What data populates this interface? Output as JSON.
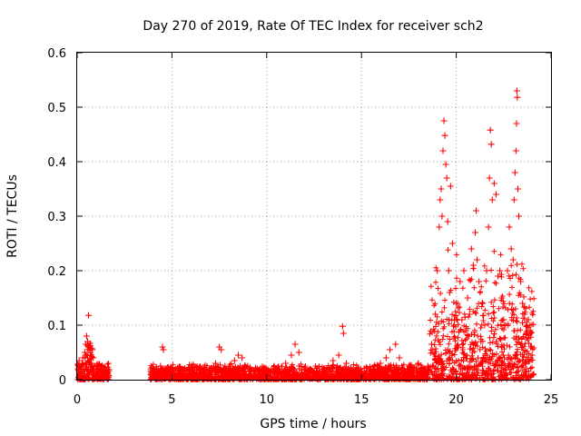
{
  "chart_data": {
    "type": "scatter",
    "title": "Day 270 of 2019, Rate Of TEC Index for receiver sch2",
    "xlabel": "GPS time / hours",
    "ylabel": "ROTI / TECUs",
    "xlim": [
      0,
      25
    ],
    "ylim": [
      0,
      0.6
    ],
    "xticks": [
      0,
      5,
      10,
      15,
      20,
      25
    ],
    "xtick_labels": [
      "0",
      "5",
      "10",
      "15",
      "20",
      "25"
    ],
    "yticks": [
      0,
      0.1,
      0.2,
      0.3,
      0.4,
      0.5,
      0.6
    ],
    "ytick_labels": [
      "0",
      "0.1",
      "0.2",
      "0.3",
      "0.4",
      "0.5",
      "0.6"
    ],
    "grid": true,
    "marker": "+",
    "color": "#ff0000",
    "series": [
      {
        "name": "ROTI",
        "points": [
          [
            0.05,
            0.02
          ],
          [
            0.1,
            0.035
          ],
          [
            0.15,
            0.012
          ],
          [
            0.2,
            0.025
          ],
          [
            0.25,
            0.03
          ],
          [
            0.3,
            0.04
          ],
          [
            0.35,
            0.018
          ],
          [
            0.4,
            0.05
          ],
          [
            0.45,
            0.065
          ],
          [
            0.5,
            0.08
          ],
          [
            0.55,
            0.07
          ],
          [
            0.6,
            0.118
          ],
          [
            0.62,
            0.06
          ],
          [
            0.7,
            0.045
          ],
          [
            0.75,
            0.03
          ],
          [
            0.8,
            0.055
          ],
          [
            0.85,
            0.04
          ],
          [
            0.9,
            0.025
          ],
          [
            1.0,
            0.02
          ],
          [
            1.1,
            0.015
          ],
          [
            1.2,
            0.012
          ],
          [
            1.3,
            0.018
          ],
          [
            1.4,
            0.01
          ],
          [
            1.5,
            0.015
          ],
          [
            1.6,
            0.012
          ],
          [
            1.65,
            0.008
          ],
          [
            3.9,
            0.012
          ],
          [
            4.0,
            0.02
          ],
          [
            4.2,
            0.015
          ],
          [
            4.4,
            0.025
          ],
          [
            4.5,
            0.06
          ],
          [
            4.55,
            0.055
          ],
          [
            4.7,
            0.02
          ],
          [
            5.0,
            0.012
          ],
          [
            5.5,
            0.015
          ],
          [
            6.0,
            0.018
          ],
          [
            6.5,
            0.012
          ],
          [
            7.0,
            0.02
          ],
          [
            7.3,
            0.03
          ],
          [
            7.5,
            0.06
          ],
          [
            7.6,
            0.055
          ],
          [
            7.8,
            0.025
          ],
          [
            8.0,
            0.02
          ],
          [
            8.3,
            0.035
          ],
          [
            8.5,
            0.045
          ],
          [
            8.7,
            0.04
          ],
          [
            9.0,
            0.025
          ],
          [
            9.5,
            0.02
          ],
          [
            10.0,
            0.018
          ],
          [
            10.5,
            0.015
          ],
          [
            11.0,
            0.03
          ],
          [
            11.3,
            0.045
          ],
          [
            11.5,
            0.065
          ],
          [
            11.7,
            0.05
          ],
          [
            12.0,
            0.02
          ],
          [
            12.5,
            0.015
          ],
          [
            13.0,
            0.02
          ],
          [
            13.5,
            0.035
          ],
          [
            13.8,
            0.045
          ],
          [
            14.0,
            0.098
          ],
          [
            14.05,
            0.085
          ],
          [
            14.2,
            0.03
          ],
          [
            14.5,
            0.015
          ],
          [
            15.0,
            0.012
          ],
          [
            15.5,
            0.02
          ],
          [
            16.0,
            0.03
          ],
          [
            16.3,
            0.04
          ],
          [
            16.5,
            0.055
          ],
          [
            16.8,
            0.065
          ],
          [
            17.0,
            0.04
          ],
          [
            17.5,
            0.025
          ],
          [
            18.0,
            0.03
          ],
          [
            18.3,
            0.02
          ],
          [
            18.5,
            0.025
          ],
          [
            18.7,
            0.065
          ],
          [
            18.9,
            0.12
          ],
          [
            19.0,
            0.2
          ],
          [
            19.1,
            0.28
          ],
          [
            19.15,
            0.33
          ],
          [
            19.2,
            0.35
          ],
          [
            19.25,
            0.3
          ],
          [
            19.3,
            0.42
          ],
          [
            19.35,
            0.475
          ],
          [
            19.4,
            0.448
          ],
          [
            19.45,
            0.395
          ],
          [
            19.5,
            0.37
          ],
          [
            19.55,
            0.29
          ],
          [
            19.6,
            0.2
          ],
          [
            19.65,
            0.16
          ],
          [
            19.7,
            0.355
          ],
          [
            19.8,
            0.25
          ],
          [
            19.9,
            0.11
          ],
          [
            20.0,
            0.14
          ],
          [
            20.1,
            0.06
          ],
          [
            20.2,
            0.18
          ],
          [
            20.3,
            0.11
          ],
          [
            20.4,
            0.2
          ],
          [
            20.5,
            0.09
          ],
          [
            20.6,
            0.15
          ],
          [
            20.7,
            0.12
          ],
          [
            20.8,
            0.24
          ],
          [
            20.9,
            0.21
          ],
          [
            21.0,
            0.27
          ],
          [
            21.05,
            0.31
          ],
          [
            21.1,
            0.22
          ],
          [
            21.2,
            0.18
          ],
          [
            21.3,
            0.07
          ],
          [
            21.4,
            0.14
          ],
          [
            21.5,
            0.1
          ],
          [
            21.6,
            0.2
          ],
          [
            21.7,
            0.28
          ],
          [
            21.75,
            0.37
          ],
          [
            21.8,
            0.458
          ],
          [
            21.85,
            0.432
          ],
          [
            21.9,
            0.33
          ],
          [
            22.0,
            0.36
          ],
          [
            22.1,
            0.34
          ],
          [
            22.2,
            0.19
          ],
          [
            22.3,
            0.2
          ],
          [
            22.4,
            0.15
          ],
          [
            22.5,
            0.11
          ],
          [
            22.6,
            0.1
          ],
          [
            22.7,
            0.2
          ],
          [
            22.8,
            0.28
          ],
          [
            22.9,
            0.24
          ],
          [
            23.0,
            0.22
          ],
          [
            23.05,
            0.33
          ],
          [
            23.1,
            0.38
          ],
          [
            23.15,
            0.42
          ],
          [
            23.18,
            0.47
          ],
          [
            23.2,
            0.53
          ],
          [
            23.22,
            0.518
          ],
          [
            23.25,
            0.35
          ],
          [
            23.3,
            0.3
          ],
          [
            23.4,
            0.18
          ],
          [
            23.5,
            0.14
          ],
          [
            23.6,
            0.12
          ],
          [
            23.7,
            0.1
          ],
          [
            23.8,
            0.11
          ],
          [
            23.9,
            0.09
          ],
          [
            24.0,
            0.045
          ],
          [
            24.05,
            0.01
          ]
        ]
      }
    ]
  }
}
